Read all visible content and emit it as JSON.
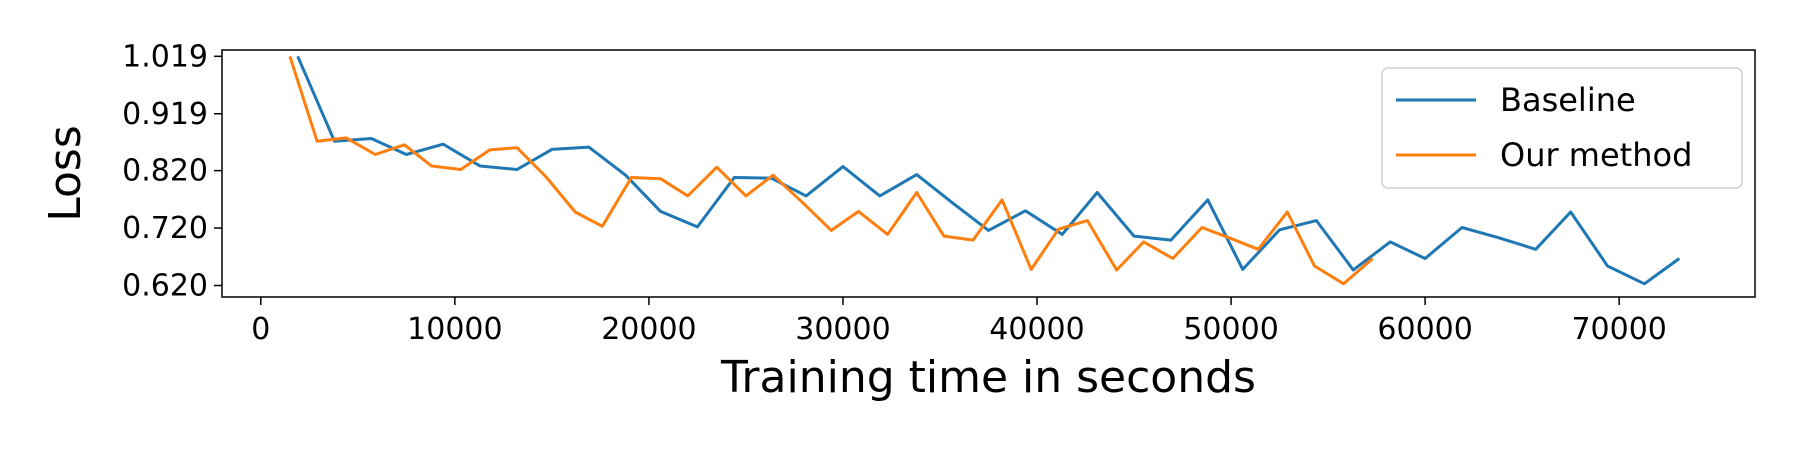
{
  "chart_data": {
    "type": "line",
    "title": "",
    "xlabel": "Training time in seconds",
    "ylabel": "Loss",
    "xlim": [
      -2000,
      77000
    ],
    "ylim": [
      0.6,
      1.03
    ],
    "x_ticks": [
      0,
      10000,
      20000,
      30000,
      40000,
      50000,
      60000,
      70000
    ],
    "y_ticks": [
      0.62,
      0.72,
      0.82,
      0.919,
      1.019
    ],
    "y_tick_labels": [
      "0.620",
      "0.720",
      "0.820",
      "0.919",
      "1.019"
    ],
    "grid": false,
    "legend_position": "top-right",
    "series": [
      {
        "name": "Baseline",
        "color": "#1f77b4",
        "x": [
          1900,
          3800,
          5700,
          7500,
          9400,
          11300,
          13200,
          15000,
          16900,
          18800,
          20600,
          22500,
          24400,
          26300,
          28100,
          30000,
          31900,
          33800,
          35600,
          37500,
          39400,
          41300,
          43100,
          45000,
          46900,
          48800,
          50600,
          52500,
          54400,
          56300,
          58200,
          60000,
          61900,
          63800,
          65700,
          67500,
          69400,
          71300,
          73100
        ],
        "y": [
          1.019,
          0.871,
          0.876,
          0.848,
          0.866,
          0.828,
          0.822,
          0.857,
          0.861,
          0.812,
          0.749,
          0.722,
          0.808,
          0.807,
          0.776,
          0.827,
          0.776,
          0.813,
          0.765,
          0.716,
          0.75,
          0.709,
          0.782,
          0.706,
          0.699,
          0.769,
          0.648,
          0.717,
          0.733,
          0.647,
          0.696,
          0.667,
          0.721,
          0.703,
          0.683,
          0.748,
          0.654,
          0.623,
          0.667
        ]
      },
      {
        "name": "Our method",
        "color": "#ff7f0e",
        "x": [
          1500,
          2900,
          4400,
          5900,
          7400,
          8800,
          10300,
          11800,
          13200,
          14700,
          16200,
          17600,
          19100,
          20600,
          22000,
          23500,
          25000,
          26400,
          27900,
          29400,
          30800,
          32300,
          33800,
          35200,
          36700,
          38200,
          39700,
          41100,
          42600,
          44100,
          45500,
          47000,
          48500,
          49900,
          51400,
          52900,
          54300,
          55800,
          57300
        ],
        "y": [
          1.019,
          0.871,
          0.877,
          0.848,
          0.865,
          0.828,
          0.822,
          0.856,
          0.86,
          0.809,
          0.748,
          0.723,
          0.808,
          0.806,
          0.776,
          0.826,
          0.776,
          0.812,
          0.765,
          0.716,
          0.749,
          0.709,
          0.782,
          0.706,
          0.699,
          0.769,
          0.648,
          0.718,
          0.733,
          0.647,
          0.696,
          0.667,
          0.721,
          0.703,
          0.683,
          0.748,
          0.654,
          0.623,
          0.667
        ]
      }
    ]
  }
}
